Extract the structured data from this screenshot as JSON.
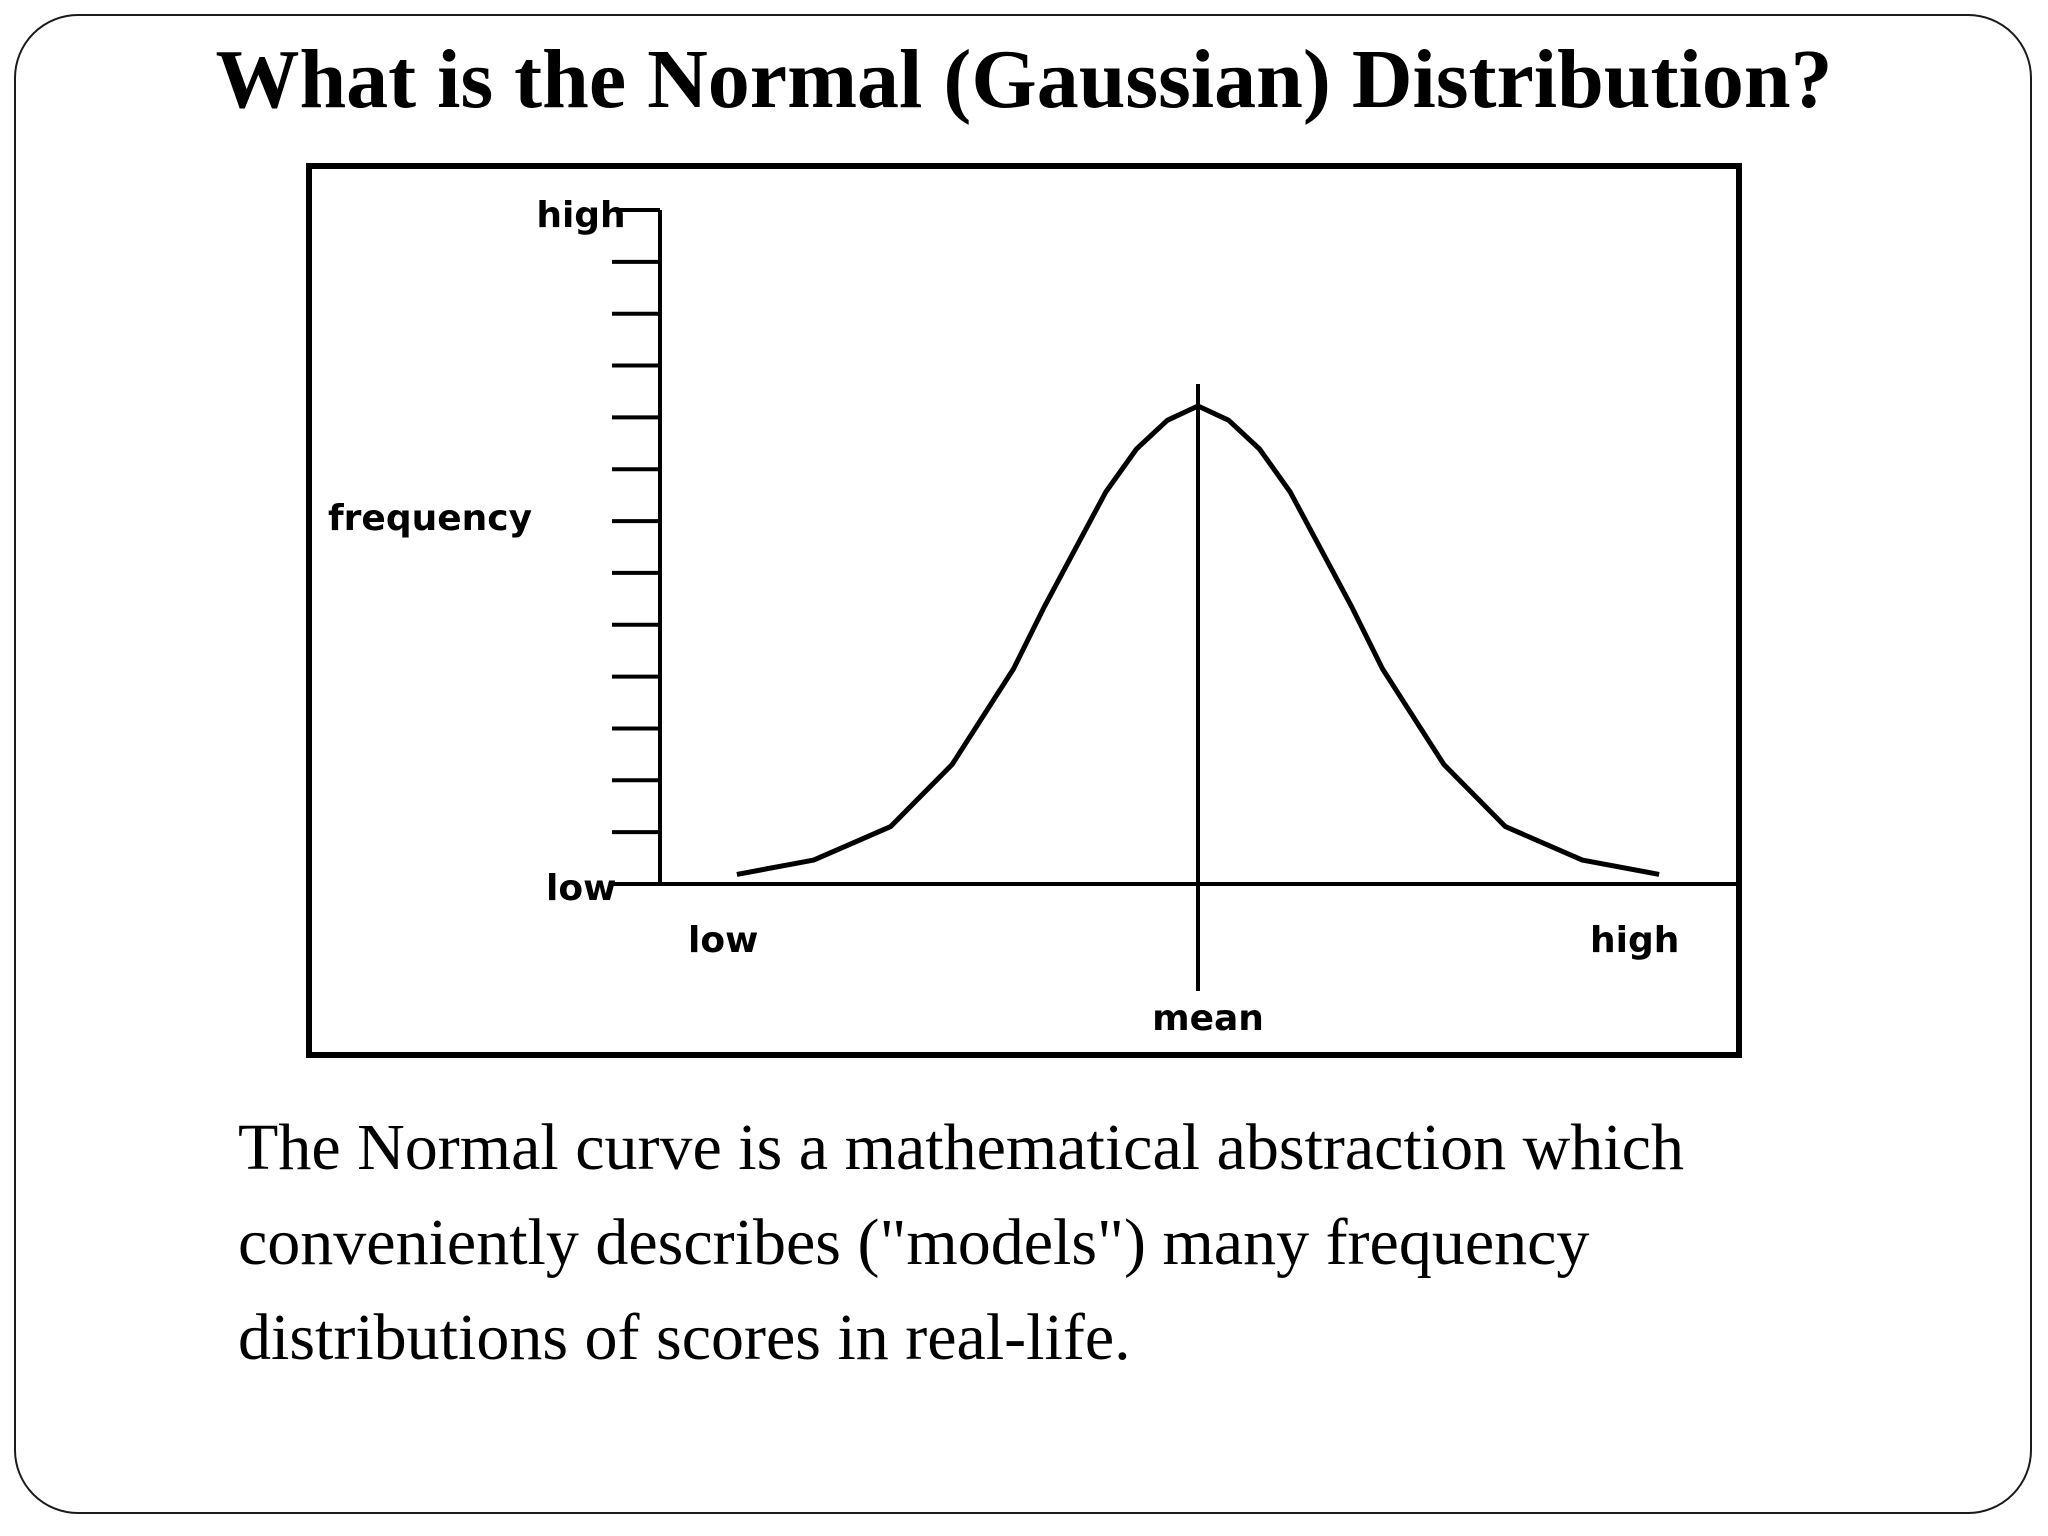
{
  "slide": {
    "title": "What is the Normal (Gaussian) Distribution?",
    "body": "The Normal curve is a mathematical abstraction which conveniently describes (\"models\") many frequency distributions of scores in real-life."
  },
  "chart_data": {
    "type": "line",
    "title": "",
    "ylabel": "frequency",
    "xlabel": "",
    "y_ticks": {
      "top": "high",
      "bottom": "low"
    },
    "x_ticks": {
      "left": "low",
      "right": "high"
    },
    "mean_label": "mean",
    "y_tick_count": 14,
    "series": [
      {
        "x": [
          -3.0,
          -2.5,
          -2.0,
          -1.6,
          -1.2,
          -1.0,
          -0.8,
          -0.6,
          -0.4,
          -0.2,
          0.0,
          0.2,
          0.4,
          0.6,
          0.8,
          1.0,
          1.2,
          1.6,
          2.0,
          2.5,
          3.0
        ],
        "y": [
          0.02,
          0.05,
          0.12,
          0.25,
          0.45,
          0.58,
          0.7,
          0.82,
          0.91,
          0.97,
          1.0,
          0.97,
          0.91,
          0.82,
          0.7,
          0.58,
          0.45,
          0.25,
          0.12,
          0.05,
          0.02
        ]
      }
    ],
    "mean_x": 0.0,
    "xlim": [
      -3.5,
      3.5
    ],
    "ylim": [
      0,
      1.41
    ],
    "colors": {
      "curve": "#000000",
      "axes": "#000000",
      "frame": "#000000"
    }
  }
}
